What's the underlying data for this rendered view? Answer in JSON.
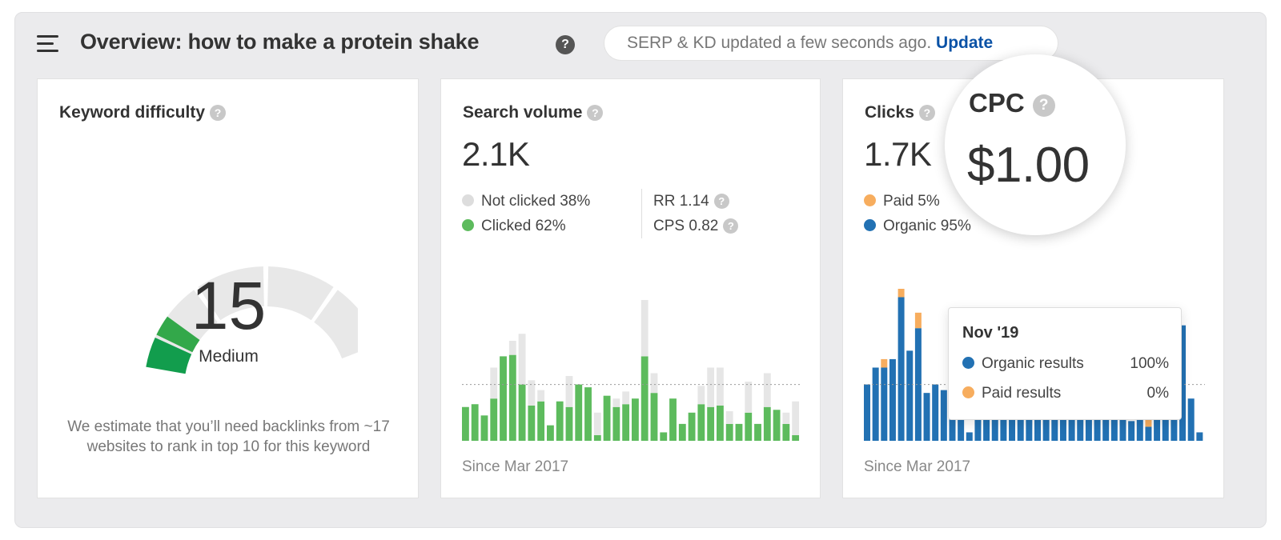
{
  "header": {
    "title": "Overview: how to make a protein shake",
    "status_text": "SERP & KD updated a few seconds ago.",
    "update_link": "Update"
  },
  "keyword_difficulty": {
    "title": "Keyword difficulty",
    "score": "15",
    "label": "Medium",
    "score_fraction": 0.15,
    "description": "We estimate that you’ll need backlinks from ~17 websites to rank in top 10 for this keyword"
  },
  "search_volume": {
    "title": "Search volume",
    "value": "2.1K",
    "legend": [
      {
        "label": "Not clicked 38%",
        "color": "#dddddd"
      },
      {
        "label": "Clicked 62%",
        "color": "#5dbb5d"
      }
    ],
    "metrics": [
      {
        "label": "RR 1.14"
      },
      {
        "label": "CPS 0.82"
      }
    ],
    "since": "Since Mar 2017"
  },
  "clicks": {
    "title": "Clicks",
    "value": "1.7K",
    "legend": [
      {
        "label": "Paid 5%",
        "color": "#f7ad5e"
      },
      {
        "label": "Organic 95%",
        "color": "#2271b3"
      }
    ],
    "since": "Since Mar 2017"
  },
  "tooltip": {
    "title": "Nov '19",
    "rows": [
      {
        "label": "Organic results",
        "value": "100%",
        "color": "#2271b3"
      },
      {
        "label": "Paid results",
        "value": "0%",
        "color": "#f7ad5e"
      }
    ]
  },
  "cpc": {
    "title": "CPC",
    "value": "$1.00"
  },
  "chart_data": [
    {
      "type": "bar",
      "series": [
        {
          "name": "Clicked",
          "color": "#5dbb5d",
          "values": [
            0.24,
            0.26,
            0.18,
            0.3,
            0.6,
            0.61,
            0.4,
            0.25,
            0.28,
            0.11,
            0.28,
            0.24,
            0.4,
            0.38,
            0.04,
            0.32,
            0.24,
            0.26,
            0.3,
            0.6,
            0.34,
            0.06,
            0.3,
            0.12,
            0.2,
            0.26,
            0.24,
            0.25,
            0.12,
            0.12,
            0.2,
            0.12,
            0.24,
            0.22,
            0.12,
            0.04
          ]
        },
        {
          "name": "Not clicked",
          "color": "#e6e6e6",
          "values": [
            0.0,
            0.0,
            0.0,
            0.22,
            0.0,
            0.1,
            0.36,
            0.18,
            0.08,
            0.0,
            0.0,
            0.22,
            0.0,
            0.0,
            0.16,
            0.0,
            0.06,
            0.09,
            0.0,
            0.4,
            0.14,
            0.0,
            0.0,
            0.0,
            0.0,
            0.13,
            0.28,
            0.27,
            0.09,
            0.0,
            0.22,
            0.0,
            0.24,
            0.0,
            0.08,
            0.24
          ]
        }
      ],
      "reference_line": 0.4
    },
    {
      "type": "bar",
      "series": [
        {
          "name": "Organic",
          "color": "#2271b3",
          "values": [
            0.4,
            0.52,
            0.52,
            0.58,
            1.02,
            0.64,
            0.8,
            0.34,
            0.4,
            0.36,
            0.26,
            0.26,
            0.06,
            0.34,
            0.28,
            0.26,
            0.24,
            0.24,
            0.3,
            0.3,
            0.3,
            0.3,
            0.2,
            0.22,
            0.26,
            0.24,
            0.26,
            0.36,
            0.26,
            0.3,
            0.28,
            0.14,
            0.36,
            0.1,
            0.3,
            0.3,
            0.4,
            0.82,
            0.3,
            0.06
          ]
        },
        {
          "name": "Paid",
          "color": "#f7ad5e",
          "values": [
            0.0,
            0.0,
            0.06,
            0.0,
            0.06,
            0.0,
            0.11,
            0.0,
            0.0,
            0.0,
            0.0,
            0.0,
            0.0,
            0.0,
            0.0,
            0.0,
            0.0,
            0.0,
            0.0,
            0.0,
            0.0,
            0.0,
            0.0,
            0.0,
            0.0,
            0.0,
            0.0,
            0.0,
            0.0,
            0.0,
            0.0,
            0.0,
            0.0,
            0.05,
            0.0,
            0.0,
            0.06,
            0.0,
            0.0,
            0.0
          ]
        }
      ],
      "reference_line": 0.4
    }
  ]
}
